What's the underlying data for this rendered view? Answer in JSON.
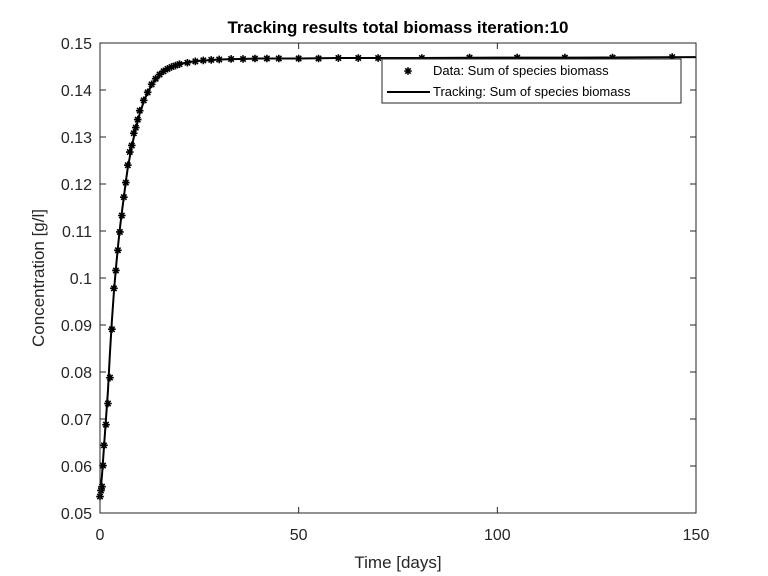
{
  "chart_data": {
    "type": "line",
    "title": "Tracking results total biomass iteration:10",
    "xlabel": "Time [days]",
    "ylabel": "Concentration [g/l]",
    "xlim": [
      0,
      150
    ],
    "ylim": [
      0.05,
      0.15
    ],
    "xticks": [
      0,
      50,
      100,
      150
    ],
    "yticks": [
      0.05,
      0.06,
      0.07,
      0.08,
      0.09,
      0.1,
      0.11,
      0.12,
      0.13,
      0.14,
      0.15
    ],
    "xtick_labels": [
      "0",
      "50",
      "100",
      "150"
    ],
    "ytick_labels": [
      "0.05",
      "0.06",
      "0.07",
      "0.08",
      "0.09",
      "0.1",
      "0.11",
      "0.12",
      "0.13",
      "0.14",
      "0.15"
    ],
    "grid": false,
    "legend_position": "top-right",
    "series": [
      {
        "name": "Data: Sum of species biomass",
        "style": "markers",
        "marker": "asterisk",
        "color": "#000000",
        "x": [
          0,
          0.25,
          0.5,
          0.75,
          1,
          1.5,
          2,
          2.5,
          3,
          3.5,
          4,
          4.5,
          5,
          5.5,
          6,
          6.5,
          7,
          7.5,
          8,
          8.5,
          9,
          9.5,
          10,
          11,
          12,
          13,
          14,
          15,
          16,
          17,
          18,
          19,
          20,
          22,
          24,
          26,
          28,
          30,
          33,
          36,
          39,
          42,
          45,
          50,
          55,
          60,
          65,
          70,
          81,
          93,
          105,
          117,
          129,
          144
        ],
        "y": [
          0.0535,
          0.0548,
          0.0556,
          0.0601,
          0.0644,
          0.0688,
          0.0733,
          0.0788,
          0.0891,
          0.0978,
          0.1016,
          0.1059,
          0.1098,
          0.1133,
          0.1172,
          0.1203,
          0.124,
          0.1268,
          0.1282,
          0.1308,
          0.132,
          0.1337,
          0.1356,
          0.1378,
          0.1395,
          0.1412,
          0.1424,
          0.1433,
          0.144,
          0.1445,
          0.1449,
          0.1452,
          0.1455,
          0.1458,
          0.1461,
          0.1463,
          0.1464,
          0.1465,
          0.1466,
          0.1466,
          0.1467,
          0.1467,
          0.1467,
          0.1467,
          0.1467,
          0.1468,
          0.1468,
          0.1468,
          0.1468,
          0.1469,
          0.1469,
          0.1469,
          0.1469,
          0.147
        ]
      },
      {
        "name": "Tracking: Sum of species biomass",
        "style": "line",
        "color": "#000000",
        "x": [
          0,
          0.5,
          1,
          1.5,
          2,
          2.5,
          3,
          3.5,
          4,
          4.5,
          5,
          5.5,
          6,
          6.5,
          7,
          8,
          9,
          10,
          11,
          12,
          13,
          14,
          15,
          16,
          18,
          20,
          22,
          25,
          30,
          35,
          40,
          50,
          60,
          80,
          100,
          120,
          150
        ],
        "y": [
          0.0535,
          0.058,
          0.064,
          0.07,
          0.076,
          0.084,
          0.091,
          0.097,
          0.102,
          0.1065,
          0.1105,
          0.114,
          0.1172,
          0.1205,
          0.1235,
          0.128,
          0.1318,
          0.135,
          0.1375,
          0.1395,
          0.141,
          0.1422,
          0.1432,
          0.144,
          0.1449,
          0.1455,
          0.1459,
          0.1462,
          0.1465,
          0.1466,
          0.1467,
          0.1467,
          0.1468,
          0.1468,
          0.1469,
          0.1469,
          0.147
        ]
      }
    ]
  }
}
